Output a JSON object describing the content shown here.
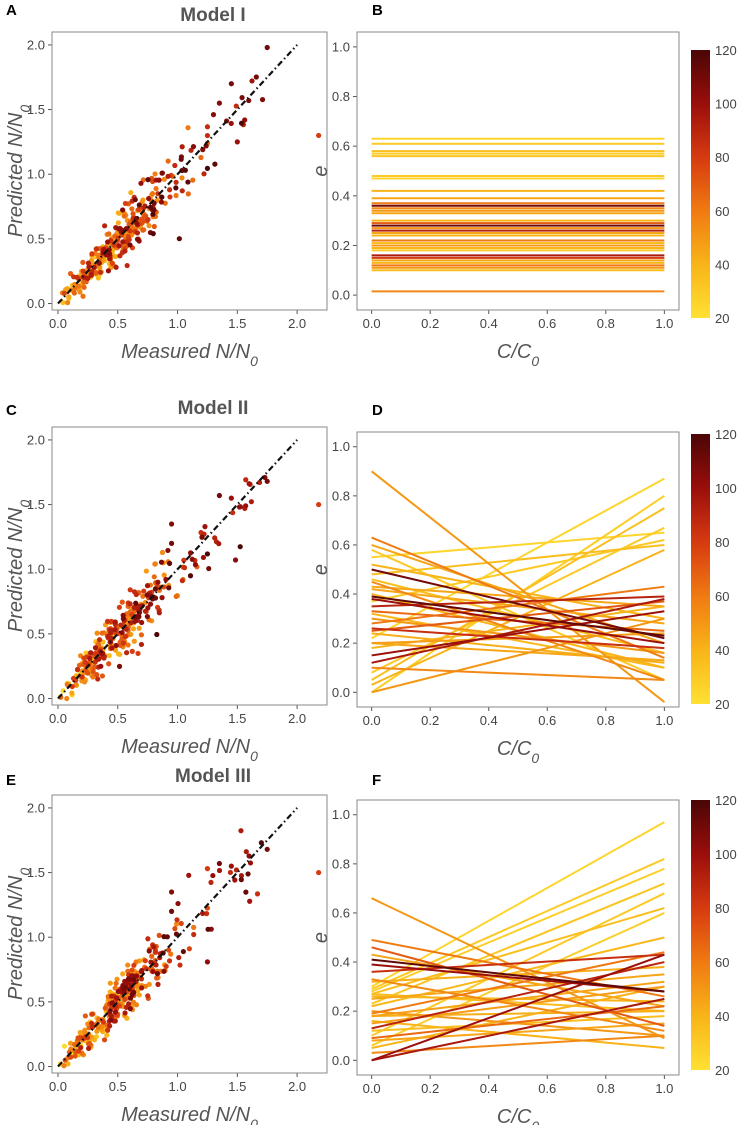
{
  "colorbar": {
    "min": 20,
    "max": 120,
    "ticks": [
      "120",
      "100",
      "80",
      "60",
      "40",
      "20"
    ],
    "tick_values": [
      120,
      100,
      80,
      60,
      40,
      20
    ],
    "colors": [
      "#ffe033",
      "#f8b418",
      "#f07a12",
      "#d63a10",
      "#9a0e0b",
      "#4a0606"
    ]
  },
  "chart_data": [
    {
      "panel": "A",
      "type": "scatter",
      "title": "Model I",
      "xlabel": "Measured N/N0",
      "ylabel": "Predicted N/N0",
      "xlim": [
        -0.05,
        2.25
      ],
      "ylim": [
        -0.05,
        2.1
      ],
      "xticks": [
        "0.0",
        "0.5",
        "1.0",
        "1.5",
        "2.0"
      ],
      "xtick_values": [
        0,
        0.5,
        1,
        1.5,
        2
      ],
      "yticks": [
        "0.0",
        "0.5",
        "1.0",
        "1.5",
        "2.0"
      ],
      "ytick_values": [
        0,
        0.5,
        1,
        1.5,
        2
      ],
      "identity_line": [
        0,
        2
      ],
      "outliers": [
        [
          2.18,
          1.3,
          80
        ],
        [
          1.75,
          1.98,
          110
        ],
        [
          1.45,
          1.7,
          110
        ],
        [
          1.5,
          1.25,
          100
        ],
        [
          1.35,
          1.55,
          105
        ]
      ],
      "seed": 11
    },
    {
      "panel": "B",
      "type": "line",
      "title": "",
      "xlabel": "C/C0",
      "ylabel": "e",
      "xlim": [
        -0.05,
        1.05
      ],
      "ylim": [
        -0.06,
        1.06
      ],
      "xticks": [
        "0.0",
        "0.2",
        "0.4",
        "0.6",
        "0.8",
        "1.0"
      ],
      "xtick_values": [
        0,
        0.2,
        0.4,
        0.6,
        0.8,
        1
      ],
      "yticks": [
        "0.0",
        "0.2",
        "0.4",
        "0.6",
        "0.8",
        "1.0"
      ],
      "ytick_values": [
        0,
        0.2,
        0.4,
        0.6,
        0.8,
        1
      ],
      "lines": [
        [
          0.63,
          0.63,
          25
        ],
        [
          0.61,
          0.61,
          30
        ],
        [
          0.58,
          0.58,
          35
        ],
        [
          0.57,
          0.57,
          28
        ],
        [
          0.56,
          0.56,
          32
        ],
        [
          0.48,
          0.48,
          30
        ],
        [
          0.47,
          0.47,
          25
        ],
        [
          0.42,
          0.42,
          40
        ],
        [
          0.39,
          0.39,
          45
        ],
        [
          0.37,
          0.37,
          60
        ],
        [
          0.36,
          0.36,
          110
        ],
        [
          0.35,
          0.35,
          55
        ],
        [
          0.34,
          0.34,
          50
        ],
        [
          0.33,
          0.33,
          45
        ],
        [
          0.3,
          0.3,
          40
        ],
        [
          0.29,
          0.29,
          70
        ],
        [
          0.28,
          0.28,
          110
        ],
        [
          0.27,
          0.27,
          50
        ],
        [
          0.26,
          0.26,
          90
        ],
        [
          0.25,
          0.25,
          45
        ],
        [
          0.24,
          0.24,
          40
        ],
        [
          0.22,
          0.22,
          60
        ],
        [
          0.21,
          0.21,
          35
        ],
        [
          0.2,
          0.2,
          50
        ],
        [
          0.19,
          0.19,
          40
        ],
        [
          0.18,
          0.18,
          30
        ],
        [
          0.16,
          0.16,
          95
        ],
        [
          0.15,
          0.15,
          80
        ],
        [
          0.14,
          0.14,
          45
        ],
        [
          0.13,
          0.13,
          40
        ],
        [
          0.12,
          0.12,
          60
        ],
        [
          0.11,
          0.11,
          50
        ],
        [
          0.1,
          0.1,
          35
        ],
        [
          0.015,
          0.015,
          55
        ]
      ]
    },
    {
      "panel": "C",
      "type": "scatter",
      "title": "Model II",
      "xlabel": "Measured N/N0",
      "ylabel": "Predicted N/N0",
      "xlim": [
        -0.05,
        2.25
      ],
      "ylim": [
        -0.05,
        2.1
      ],
      "xticks": [
        "0.0",
        "0.5",
        "1.0",
        "1.5",
        "2.0"
      ],
      "xtick_values": [
        0,
        0.5,
        1,
        1.5,
        2
      ],
      "yticks": [
        "0.0",
        "0.5",
        "1.0",
        "1.5",
        "2.0"
      ],
      "ytick_values": [
        0,
        0.5,
        1,
        1.5,
        2
      ],
      "identity_line": [
        0,
        2
      ],
      "outliers": [
        [
          2.18,
          1.5,
          80
        ],
        [
          1.75,
          1.68,
          110
        ],
        [
          1.35,
          1.57,
          110
        ],
        [
          1.45,
          1.55,
          100
        ],
        [
          0.95,
          1.35,
          105
        ],
        [
          0.95,
          1.2,
          110
        ]
      ],
      "seed": 23
    },
    {
      "panel": "D",
      "type": "line",
      "title": "",
      "xlabel": "C/C0",
      "ylabel": "e",
      "xlim": [
        -0.05,
        1.05
      ],
      "ylim": [
        -0.06,
        1.06
      ],
      "xticks": [
        "0.0",
        "0.2",
        "0.4",
        "0.6",
        "0.8",
        "1.0"
      ],
      "xtick_values": [
        0,
        0.2,
        0.4,
        0.6,
        0.8,
        1
      ],
      "yticks": [
        "0.0",
        "0.2",
        "0.4",
        "0.6",
        "0.8",
        "1.0"
      ],
      "ytick_values": [
        0,
        0.2,
        0.4,
        0.6,
        0.8,
        1
      ],
      "lines": [
        [
          0.9,
          -0.04,
          50
        ],
        [
          0.63,
          0.14,
          60
        ],
        [
          0.6,
          0.2,
          45
        ],
        [
          0.58,
          0.05,
          30
        ],
        [
          0.55,
          0.65,
          25
        ],
        [
          0.52,
          0.3,
          40
        ],
        [
          0.5,
          0.22,
          110
        ],
        [
          0.48,
          0.6,
          35
        ],
        [
          0.45,
          0.05,
          55
        ],
        [
          0.43,
          0.35,
          45
        ],
        [
          0.4,
          0.1,
          40
        ],
        [
          0.39,
          0.23,
          115
        ],
        [
          0.38,
          0.2,
          100
        ],
        [
          0.37,
          0.62,
          30
        ],
        [
          0.35,
          0.39,
          90
        ],
        [
          0.33,
          0.25,
          65
        ],
        [
          0.3,
          0.16,
          50
        ],
        [
          0.28,
          0.43,
          60
        ],
        [
          0.26,
          0.18,
          85
        ],
        [
          0.25,
          0.37,
          70
        ],
        [
          0.22,
          0.87,
          25
        ],
        [
          0.2,
          0.13,
          45
        ],
        [
          0.18,
          0.35,
          40
        ],
        [
          0.15,
          0.33,
          100
        ],
        [
          0.12,
          0.38,
          95
        ],
        [
          0.1,
          0.05,
          55
        ],
        [
          0.08,
          0.67,
          30
        ],
        [
          0.05,
          0.75,
          35
        ],
        [
          0.03,
          0.58,
          40
        ],
        [
          0.0,
          0.8,
          28
        ],
        [
          0.0,
          0.3,
          50
        ],
        [
          0.42,
          0.28,
          45
        ],
        [
          0.46,
          0.16,
          35
        ],
        [
          0.32,
          0.1,
          38
        ],
        [
          0.24,
          0.12,
          42
        ],
        [
          0.2,
          0.24,
          48
        ]
      ]
    },
    {
      "panel": "E",
      "type": "scatter",
      "title": "Model III",
      "xlabel": "Measured N/N0",
      "ylabel": "Predicted N/N0",
      "xlim": [
        -0.05,
        2.25
      ],
      "ylim": [
        -0.05,
        2.1
      ],
      "xticks": [
        "0.0",
        "0.5",
        "1.0",
        "1.5",
        "2.0"
      ],
      "xtick_values": [
        0,
        0.5,
        1,
        1.5,
        2
      ],
      "yticks": [
        "0.0",
        "0.5",
        "1.0",
        "1.5",
        "2.0"
      ],
      "ytick_values": [
        0,
        0.5,
        1,
        1.5,
        2
      ],
      "identity_line": [
        0,
        2
      ],
      "outliers": [
        [
          2.18,
          1.5,
          80
        ],
        [
          1.75,
          1.68,
          110
        ],
        [
          1.35,
          1.57,
          110
        ],
        [
          1.45,
          1.55,
          100
        ],
        [
          0.95,
          1.35,
          105
        ],
        [
          0.95,
          1.2,
          110
        ]
      ],
      "seed": 37
    },
    {
      "panel": "F",
      "type": "line",
      "title": "",
      "xlabel": "C/C0",
      "ylabel": "e",
      "xlim": [
        -0.05,
        1.05
      ],
      "ylim": [
        -0.06,
        1.06
      ],
      "xticks": [
        "0.0",
        "0.2",
        "0.4",
        "0.6",
        "0.8",
        "1.0"
      ],
      "xtick_values": [
        0,
        0.2,
        0.4,
        0.6,
        0.8,
        1
      ],
      "yticks": [
        "0.0",
        "0.2",
        "0.4",
        "0.6",
        "0.8",
        "1.0"
      ],
      "ytick_values": [
        0,
        0.2,
        0.4,
        0.6,
        0.8,
        1
      ],
      "lines": [
        [
          0.66,
          0.09,
          50
        ],
        [
          0.49,
          0.26,
          60
        ],
        [
          0.46,
          0.14,
          70
        ],
        [
          0.43,
          0.22,
          45
        ],
        [
          0.41,
          0.28,
          115
        ],
        [
          0.39,
          0.28,
          100
        ],
        [
          0.36,
          0.43,
          85
        ],
        [
          0.33,
          0.12,
          55
        ],
        [
          0.3,
          0.97,
          25
        ],
        [
          0.29,
          0.82,
          30
        ],
        [
          0.28,
          0.78,
          28
        ],
        [
          0.27,
          0.62,
          35
        ],
        [
          0.26,
          0.24,
          40
        ],
        [
          0.25,
          0.35,
          45
        ],
        [
          0.23,
          0.72,
          32
        ],
        [
          0.22,
          0.5,
          38
        ],
        [
          0.2,
          0.1,
          50
        ],
        [
          0.19,
          0.44,
          60
        ],
        [
          0.18,
          0.2,
          42
        ],
        [
          0.16,
          0.05,
          40
        ],
        [
          0.15,
          0.3,
          48
        ],
        [
          0.13,
          0.4,
          90
        ],
        [
          0.12,
          0.18,
          35
        ],
        [
          0.1,
          0.68,
          30
        ],
        [
          0.09,
          0.22,
          65
        ],
        [
          0.08,
          0.15,
          45
        ],
        [
          0.06,
          0.6,
          28
        ],
        [
          0.05,
          0.3,
          40
        ],
        [
          0.03,
          0.1,
          55
        ],
        [
          0.0,
          0.43,
          100
        ],
        [
          0.0,
          0.25,
          95
        ],
        [
          0.32,
          0.38,
          42
        ],
        [
          0.18,
          0.32,
          46
        ],
        [
          0.27,
          0.2,
          36
        ]
      ]
    }
  ]
}
